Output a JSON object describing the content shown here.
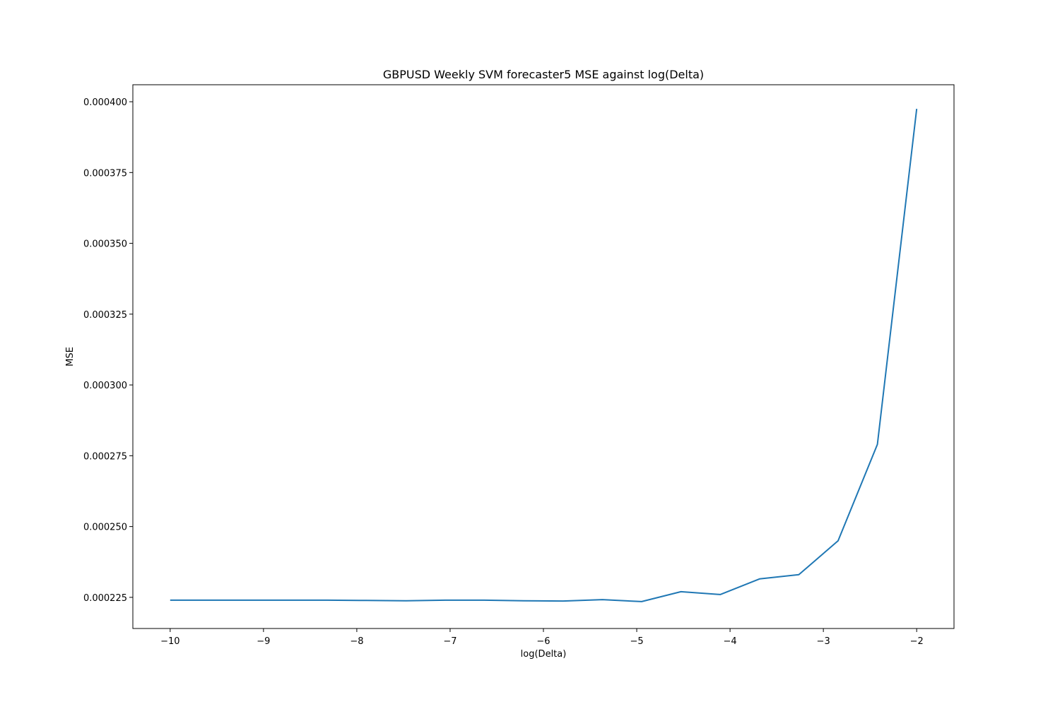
{
  "chart_data": {
    "type": "line",
    "title": "GBPUSD Weekly SVM forecaster5 MSE against log(Delta)",
    "xlabel": "log(Delta)",
    "ylabel": "MSE",
    "xlim": [
      -10.4,
      -1.6
    ],
    "ylim": [
      0.000214,
      0.000406
    ],
    "x_ticks": [
      -10,
      -9,
      -8,
      -7,
      -6,
      -5,
      -4,
      -3,
      -2
    ],
    "x_tick_labels": [
      "−10",
      "−9",
      "−8",
      "−7",
      "−6",
      "−5",
      "−4",
      "−3",
      "−2"
    ],
    "y_ticks": [
      0.000225,
      0.00025,
      0.000275,
      0.0003,
      0.000325,
      0.00035,
      0.000375,
      0.0004
    ],
    "y_tick_labels": [
      "0.000225",
      "0.000250",
      "0.000275",
      "0.000300",
      "0.000325",
      "0.000350",
      "0.000375",
      "0.000400"
    ],
    "grid": false,
    "series": [
      {
        "color": "#1f77b4",
        "x": [
          -10.0,
          -9.579,
          -9.158,
          -8.737,
          -8.316,
          -7.895,
          -7.474,
          -7.053,
          -6.632,
          -6.211,
          -5.789,
          -5.368,
          -4.947,
          -4.526,
          -4.105,
          -3.684,
          -3.263,
          -2.842,
          -2.421,
          -2.0
        ],
        "y": [
          0.000224,
          0.000224,
          0.000224,
          0.000224,
          0.000224,
          0.0002239,
          0.0002238,
          0.000224,
          0.000224,
          0.0002238,
          0.0002237,
          0.0002242,
          0.0002235,
          0.000227,
          0.000226,
          0.0002315,
          0.000233,
          0.000245,
          0.000279,
          0.0003975
        ]
      }
    ]
  }
}
